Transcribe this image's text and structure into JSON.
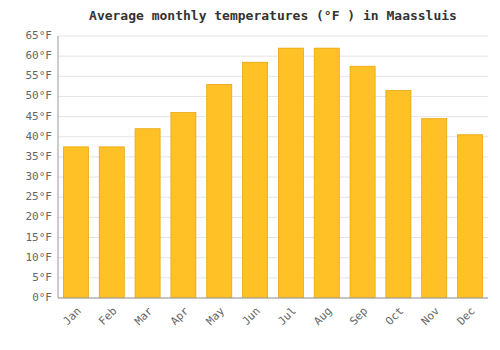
{
  "chart_data": {
    "type": "bar",
    "title": "Average monthly temperatures (°F ) in Maassluis",
    "categories": [
      "Jan",
      "Feb",
      "Mar",
      "Apr",
      "May",
      "Jun",
      "Jul",
      "Aug",
      "Sep",
      "Oct",
      "Nov",
      "Dec"
    ],
    "values": [
      37.5,
      37.5,
      42,
      46,
      53,
      58.5,
      62,
      62,
      57.5,
      51.5,
      44.5,
      40.5
    ],
    "color": "#FFC125",
    "ylim": [
      0,
      65
    ],
    "yticks": [
      {
        "value": 0,
        "label": "0°F"
      },
      {
        "value": 5,
        "label": "5°F"
      },
      {
        "value": 10,
        "label": "10°F"
      },
      {
        "value": 15,
        "label": "15°F"
      },
      {
        "value": 20,
        "label": "20°F"
      },
      {
        "value": 25,
        "label": "25°F"
      },
      {
        "value": 30,
        "label": "30°F"
      },
      {
        "value": 35,
        "label": "35°F"
      },
      {
        "value": 40,
        "label": "40°F"
      },
      {
        "value": 45,
        "label": "45°F"
      },
      {
        "value": 50,
        "label": "50°F"
      },
      {
        "value": 55,
        "label": "55°F"
      },
      {
        "value": 60,
        "label": "60°F"
      },
      {
        "value": 65,
        "label": "65°F"
      }
    ],
    "grid": true
  }
}
